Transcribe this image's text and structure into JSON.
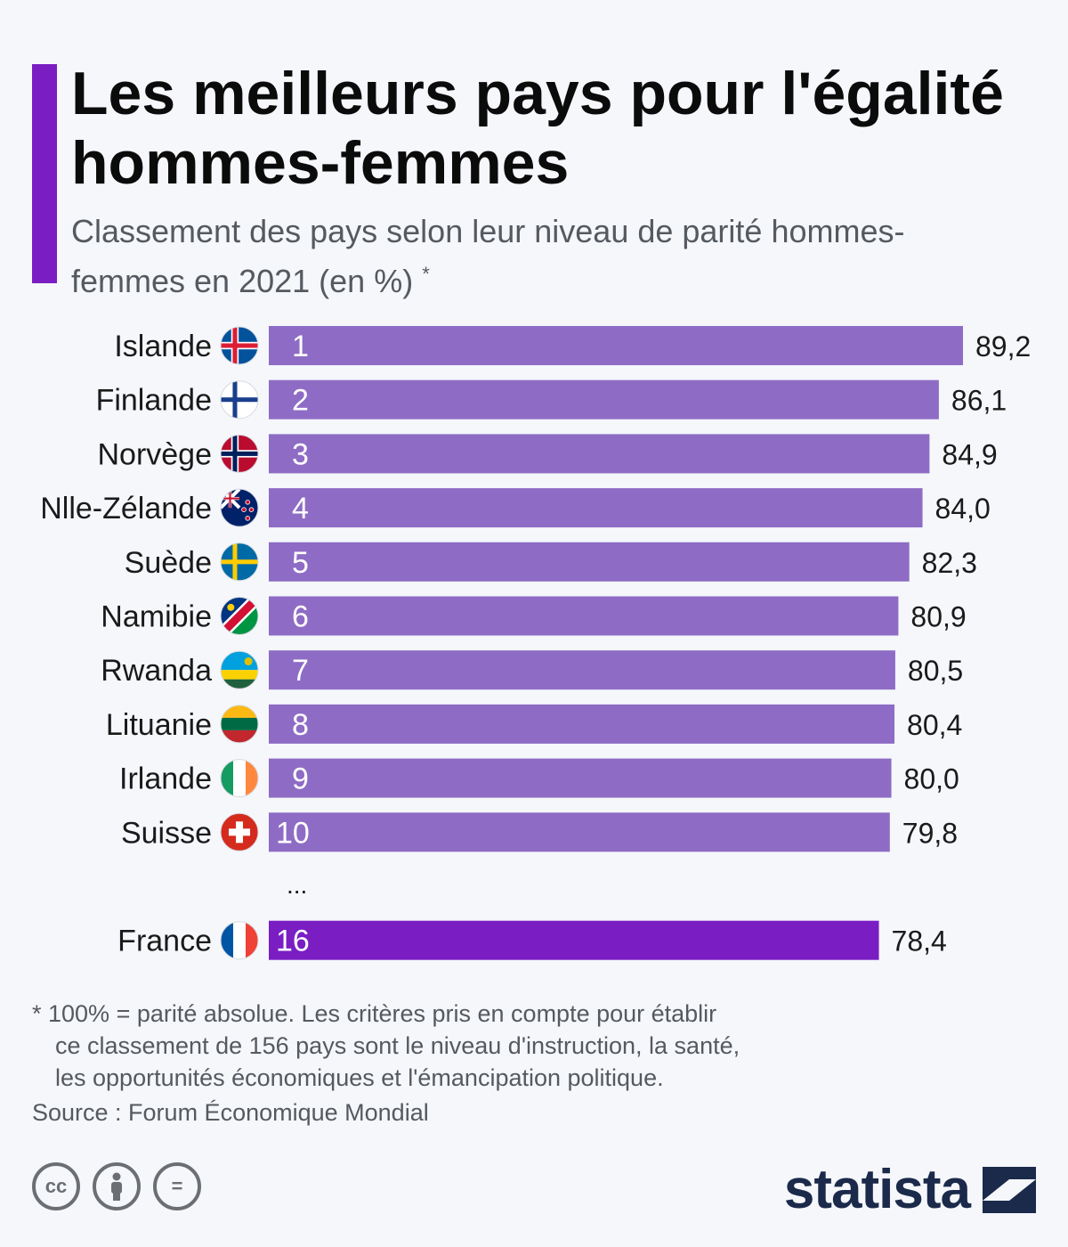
{
  "title": "Les meilleurs pays pour l'égalité hommes-femmes",
  "subtitle": "Classement des pays selon leur niveau de parité hommes-femmes en 2021 (en %)",
  "subtitle_mark": "*",
  "colors": {
    "accent": "#7a1ec3",
    "bar": "#8e6cc5",
    "bar_highlight": "#7a1ec3"
  },
  "chart_data": {
    "type": "bar",
    "orientation": "horizontal",
    "categories": [
      "Islande",
      "Finlande",
      "Norvège",
      "Nlle-Zélande",
      "Suède",
      "Namibie",
      "Rwanda",
      "Lituanie",
      "Irlande",
      "Suisse",
      "France"
    ],
    "ranks": [
      "1",
      "2",
      "3",
      "4",
      "5",
      "6",
      "7",
      "8",
      "9",
      "10",
      "16"
    ],
    "values": [
      89.2,
      86.1,
      84.9,
      84.0,
      82.3,
      80.9,
      80.5,
      80.4,
      80.0,
      79.8,
      78.4
    ],
    "value_labels": [
      "89,2",
      "86,1",
      "84,9",
      "84,0",
      "82,3",
      "80,9",
      "80,5",
      "80,4",
      "80,0",
      "79,8",
      "78,4"
    ],
    "flag_icons": [
      "iceland-flag-icon",
      "finland-flag-icon",
      "norway-flag-icon",
      "new-zealand-flag-icon",
      "sweden-flag-icon",
      "namibia-flag-icon",
      "rwanda-flag-icon",
      "lithuania-flag-icon",
      "ireland-flag-icon",
      "switzerland-flag-icon",
      "france-flag-icon"
    ],
    "highlight": "France",
    "gap_label": "...",
    "xlim": [
      0,
      89.2
    ],
    "grid": false
  },
  "footnote": {
    "lines": [
      "* 100% = parité absolue. Les critères pris en compte pour établir",
      "ce classement de 156 pays sont le niveau d'instruction, la santé,",
      "les opportunités économiques et l'émancipation politique."
    ]
  },
  "source": "Source : Forum Économique Mondial",
  "license_icons": [
    "cc-icon",
    "attribution-icon",
    "no-derivatives-icon"
  ],
  "license_labels": [
    "cc",
    "="
  ],
  "brand": "statista"
}
